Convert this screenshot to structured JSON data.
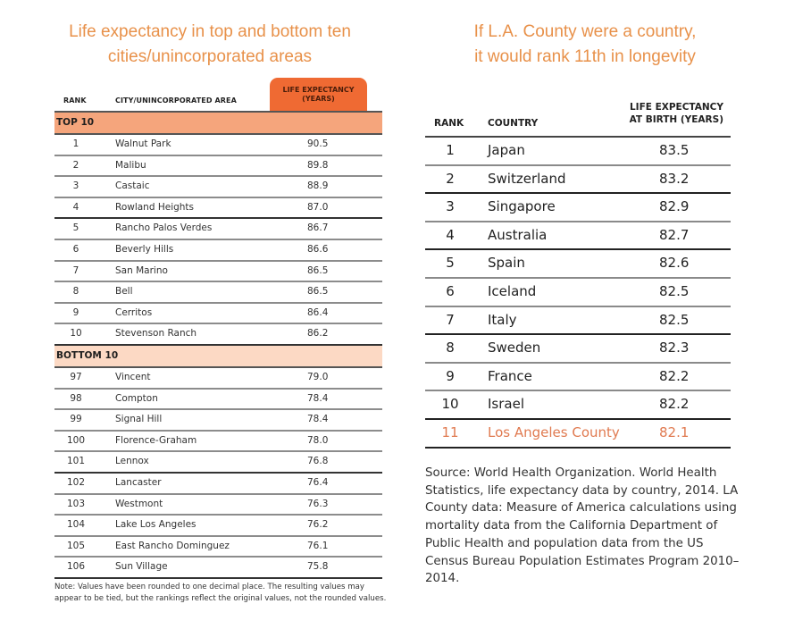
{
  "left": {
    "title_line1": "Life expectancy in top and bottom ten",
    "title_line2": "cities/unincorporated areas",
    "headers": {
      "rank": "RANK",
      "area": "CITY/UNINCORPORATED AREA",
      "le_line1": "LIFE EXPECTANCY",
      "le_line2": "(YEARS)"
    },
    "top_label": "TOP 10",
    "bottom_label": "BOTTOM 10",
    "top": [
      {
        "rank": "1",
        "name": "Walnut Park",
        "value": "90.5"
      },
      {
        "rank": "2",
        "name": "Malibu",
        "value": "89.8"
      },
      {
        "rank": "3",
        "name": "Castaic",
        "value": "88.9"
      },
      {
        "rank": "4",
        "name": "Rowland Heights",
        "value": "87.0"
      },
      {
        "rank": "5",
        "name": "Rancho Palos Verdes",
        "value": "86.7"
      },
      {
        "rank": "6",
        "name": "Beverly Hills",
        "value": "86.6"
      },
      {
        "rank": "7",
        "name": "San Marino",
        "value": "86.5"
      },
      {
        "rank": "8",
        "name": "Bell",
        "value": "86.5"
      },
      {
        "rank": "9",
        "name": "Cerritos",
        "value": "86.4"
      },
      {
        "rank": "10",
        "name": "Stevenson Ranch",
        "value": "86.2"
      }
    ],
    "bottom": [
      {
        "rank": "97",
        "name": "Vincent",
        "value": "79.0"
      },
      {
        "rank": "98",
        "name": "Compton",
        "value": "78.4"
      },
      {
        "rank": "99",
        "name": "Signal Hill",
        "value": "78.4"
      },
      {
        "rank": "100",
        "name": "Florence-Graham",
        "value": "78.0"
      },
      {
        "rank": "101",
        "name": "Lennox",
        "value": "76.8"
      },
      {
        "rank": "102",
        "name": "Lancaster",
        "value": "76.4"
      },
      {
        "rank": "103",
        "name": "Westmont",
        "value": "76.3"
      },
      {
        "rank": "104",
        "name": "Lake Los Angeles",
        "value": "76.2"
      },
      {
        "rank": "105",
        "name": "East Rancho Dominguez",
        "value": "76.1"
      },
      {
        "rank": "106",
        "name": "Sun Village",
        "value": "75.8"
      }
    ],
    "note": "Note: Values have been rounded to one decimal place. The resulting values may appear to be tied, but the rankings reflect the original values, not the rounded values."
  },
  "right": {
    "title_line1": "If L.A. County were a country,",
    "title_line2": "it would rank 11th in longevity",
    "headers": {
      "rank": "RANK",
      "country": "COUNTRY",
      "le_line1": "LIFE EXPECTANCY",
      "le_line2": "AT BIRTH (YEARS)"
    },
    "rows": [
      {
        "rank": "1",
        "name": "Japan",
        "value": "83.5"
      },
      {
        "rank": "2",
        "name": "Switzerland",
        "value": "83.2"
      },
      {
        "rank": "3",
        "name": "Singapore",
        "value": "82.9"
      },
      {
        "rank": "4",
        "name": "Australia",
        "value": "82.7"
      },
      {
        "rank": "5",
        "name": "Spain",
        "value": "82.6"
      },
      {
        "rank": "6",
        "name": "Iceland",
        "value": "82.5"
      },
      {
        "rank": "7",
        "name": "Italy",
        "value": "82.5"
      },
      {
        "rank": "8",
        "name": "Sweden",
        "value": "82.3"
      },
      {
        "rank": "9",
        "name": "France",
        "value": "82.2"
      },
      {
        "rank": "10",
        "name": "Israel",
        "value": "82.2"
      },
      {
        "rank": "11",
        "name": "Los Angeles County",
        "value": "82.1"
      }
    ],
    "source": "Source: World Health Organization. World Health Statistics, life expectancy data by country, 2014. LA County data: Measure of America calculations using mortality data from the California Department of Public Health and population data from the US Census Bureau Population Estimates Program 2010–2014."
  },
  "colors": {
    "accent_title": "#e8914a",
    "pill": "#ef6a33",
    "top_band": "#f5a57c",
    "bottom_band": "#fcd9c4",
    "highlight": "#e07a50"
  }
}
